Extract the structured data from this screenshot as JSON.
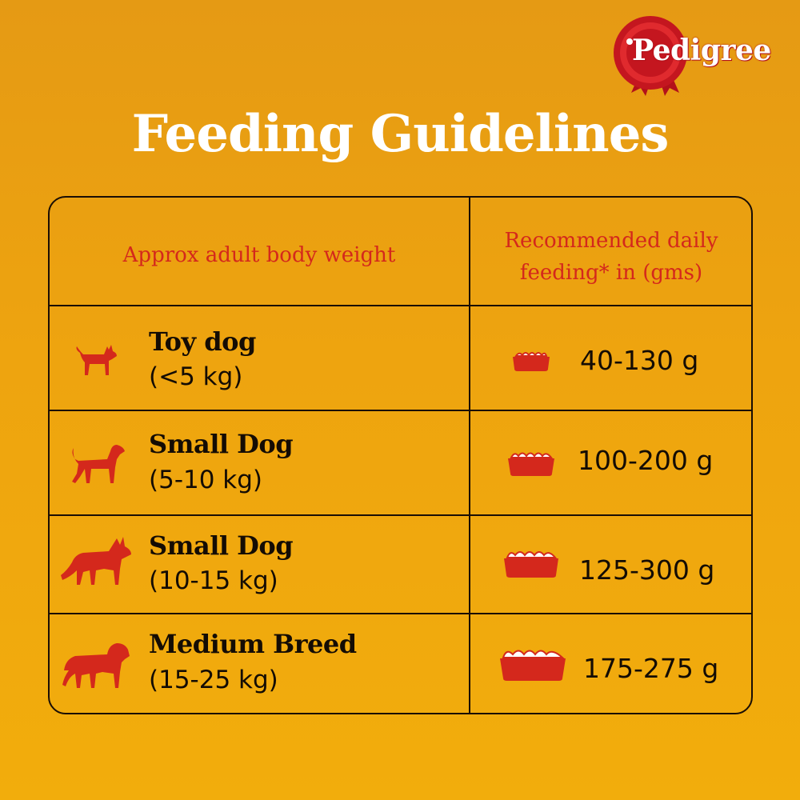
{
  "brand": {
    "name": "Pedigree"
  },
  "title": "Feeding Guidelines",
  "table": {
    "header_left": "Approx adult body weight",
    "header_right_line1": "Recommended daily",
    "header_right_line2": "feeding* in (gms)",
    "rows": [
      {
        "name": "Toy dog",
        "weight": "(<5 kg)",
        "amount": "40-130 g",
        "dog_icon": "toy-dog-icon",
        "bowl_icon": "small-bowl-icon"
      },
      {
        "name": "Small Dog",
        "weight": "(5-10 kg)",
        "amount": "100-200 g",
        "dog_icon": "small-dog-icon",
        "bowl_icon": "bowl-icon"
      },
      {
        "name": "Small Dog",
        "weight": "(10-15 kg)",
        "amount": "125-300 g",
        "dog_icon": "husky-dog-icon",
        "bowl_icon": "bowl-icon"
      },
      {
        "name": "Medium Breed",
        "weight": "(15-25 kg)",
        "amount": "175-275 g",
        "dog_icon": "medium-dog-icon",
        "bowl_icon": "large-bowl-icon"
      }
    ]
  },
  "colors": {
    "accent_red": "#d4281c",
    "text_dark": "#140c04",
    "background": "#eea40f"
  }
}
